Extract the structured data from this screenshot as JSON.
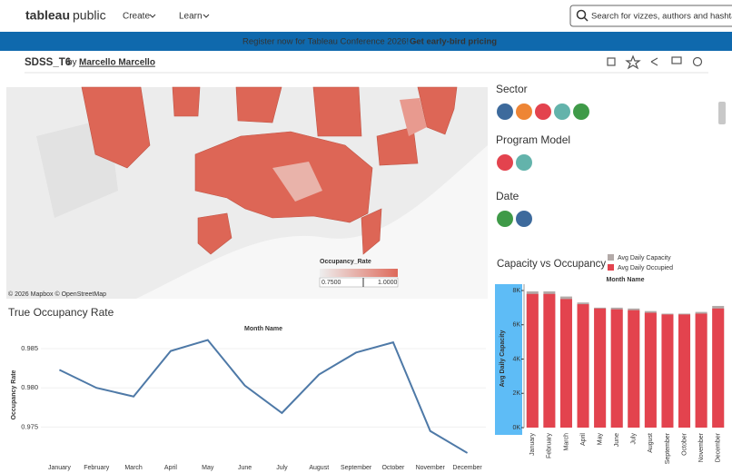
{
  "header": {
    "logo_a": "tableau",
    "logo_b": "public",
    "nav": [
      "Create",
      "Learn"
    ],
    "search": "Search for vizzes, authors and hashtags"
  },
  "banner": {
    "text": "Register now for Tableau Conference 2026! →",
    "link": "Get early-bird pricing"
  },
  "viz": {
    "title": "SDSS_T6",
    "by": "by",
    "author": "Marcello Marcello"
  },
  "map": {
    "attribution": "© 2026 Mapbox © OpenStreetMap",
    "legend_title": "Occupancy_Rate",
    "legend_min": "0.7500",
    "legend_max": "1.0000"
  },
  "filters": [
    {
      "title": "Sector",
      "colors": [
        "#3d6a9c",
        "#ee8535",
        "#e3434e",
        "#63b3ab",
        "#3f9a48"
      ]
    },
    {
      "title": "Program Model",
      "colors": [
        "#e3434e",
        "#63b3ab"
      ]
    },
    {
      "title": "Date",
      "colors": [
        "#3f9a48",
        "#3d6a9c"
      ]
    }
  ],
  "chart_data": [
    {
      "type": "line",
      "title": "True Occupancy Rate",
      "x_label": "Month Name",
      "y_label": "Occupancy Rate",
      "categories": [
        "January",
        "February",
        "March",
        "April",
        "May",
        "June",
        "July",
        "August",
        "September",
        "October",
        "November",
        "December"
      ],
      "values": [
        0.9823,
        0.98,
        0.9789,
        0.9847,
        0.9861,
        0.9803,
        0.9768,
        0.9817,
        0.9845,
        0.9858,
        0.9745,
        0.9717
      ],
      "color": "#4e79a7",
      "ylim": [
        0.971,
        0.9872
      ],
      "yticks": [
        0.975,
        {
          "value": 0.98,
          "label": "0.980"
        },
        0.985
      ]
    },
    {
      "type": "bar",
      "title": "Capacity vs Occupancy",
      "x_label": "Month Name",
      "y_label": "Avg Daily Capacity",
      "categories": [
        "January",
        "February",
        "March",
        "April",
        "May",
        "June",
        "July",
        "August",
        "September",
        "October",
        "November",
        "December"
      ],
      "series": [
        {
          "name": "Avg Daily Capacity",
          "color": "#b3aaa8",
          "values": [
            7950,
            7950,
            7650,
            7300,
            7000,
            7000,
            6950,
            6800,
            6650,
            6650,
            6750,
            7100
          ]
        },
        {
          "name": "Avg Daily Occupied",
          "color": "#e3434e",
          "values": [
            7800,
            7800,
            7500,
            7200,
            6950,
            6900,
            6850,
            6700,
            6600,
            6600,
            6650,
            6950
          ]
        }
      ],
      "ylim": [
        0,
        8370
      ],
      "yticks": [
        {
          "value": 0,
          "label": "0K"
        },
        {
          "value": 2000,
          "label": "2K"
        },
        {
          "value": 4000,
          "label": "4K"
        },
        {
          "value": 6000,
          "label": "6K"
        },
        {
          "value": 8000,
          "label": "8K"
        }
      ]
    }
  ]
}
